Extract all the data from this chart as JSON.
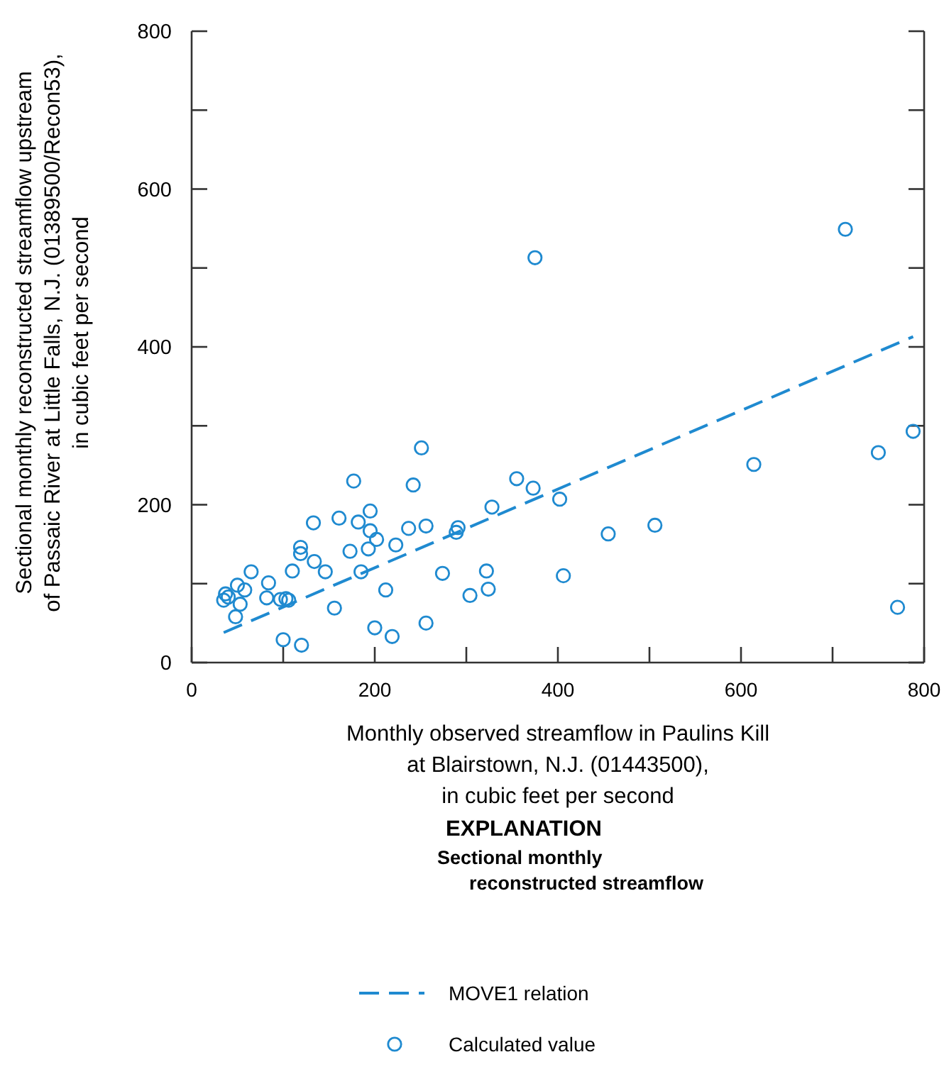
{
  "chart_data": {
    "type": "scatter",
    "xlabel": "Monthly observed streamflow in Paulins Kill\nat Blairstown, N.J. (01443500),\nin cubic feet per second",
    "ylabel": "Sectional monthly reconstructed streamflow upstream\nof Passaic River at Little Falls, N.J. (01389500/Recon53),\nin cubic feet per second",
    "legend_title": "EXPLANATION",
    "annotations": [
      "Sectional monthly\n      reconstructed streamflow"
    ],
    "xlim": [
      0,
      800
    ],
    "ylim": [
      0,
      800
    ],
    "xticks": [
      0,
      {
        "value": 100,
        "label": null
      },
      200,
      {
        "value": 300,
        "label": null
      },
      400,
      {
        "value": 500,
        "label": null
      },
      600,
      {
        "value": 700,
        "label": null
      },
      800
    ],
    "yticks": [
      0,
      {
        "value": 100,
        "label": null
      },
      200,
      {
        "value": 300,
        "label": null
      },
      400,
      {
        "value": 500,
        "label": null
      },
      600,
      {
        "value": 700,
        "label": null
      },
      800
    ],
    "grid": false,
    "legend": "bottom",
    "series": [
      {
        "name": "MOVE1 relation",
        "type": "line",
        "line_style": "dashed",
        "marker": "none",
        "color": "#1f8ad0",
        "x": [
          35,
          788
        ],
        "values": [
          38,
          413
        ]
      },
      {
        "name": "Calculated value",
        "marker": "circle",
        "color": "#1f8ad0",
        "x": [
          35,
          37,
          40,
          48,
          50,
          53,
          58,
          65,
          82,
          84,
          97,
          100,
          103,
          106,
          110,
          119,
          119,
          120,
          133,
          134,
          146,
          156,
          161,
          173,
          177,
          182,
          185,
          193,
          195,
          195,
          202,
          200,
          212,
          219,
          223,
          237,
          242,
          251,
          256,
          256,
          274,
          289,
          291,
          304,
          322,
          324,
          328,
          355,
          373,
          375,
          402,
          406,
          455,
          506,
          614,
          714,
          750,
          771,
          788
        ],
        "values": [
          79,
          87,
          83,
          58,
          98,
          74,
          92,
          115,
          82,
          101,
          80,
          29,
          81,
          79,
          116,
          146,
          138,
          22,
          177,
          128,
          115,
          69,
          183,
          141,
          230,
          178,
          115,
          144,
          192,
          167,
          156,
          44,
          92,
          33,
          149,
          170,
          225,
          272,
          173,
          50,
          113,
          165,
          171,
          85,
          116,
          93,
          197,
          233,
          221,
          513,
          207,
          110,
          163,
          174,
          251,
          549,
          266,
          70,
          293
        ]
      }
    ]
  }
}
